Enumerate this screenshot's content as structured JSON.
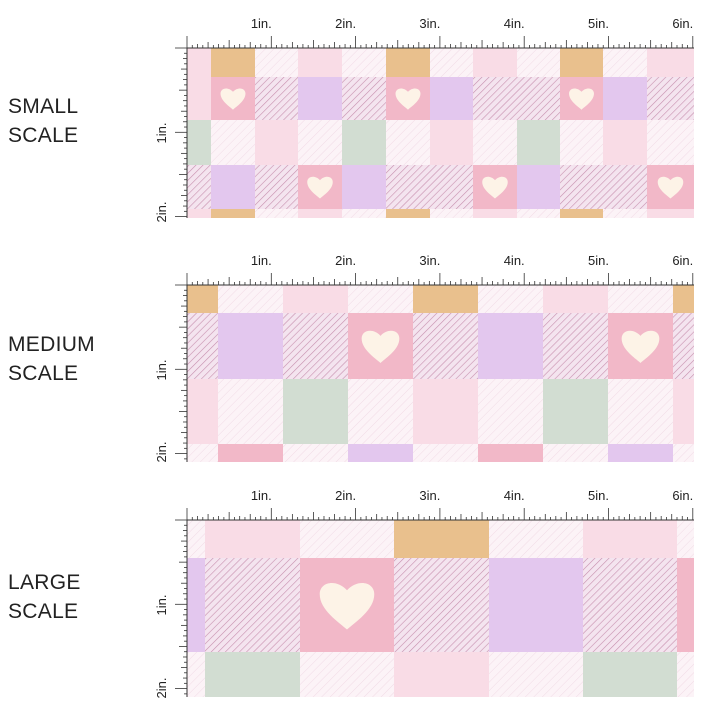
{
  "rulers": {
    "horizontal_labels": [
      "1in.",
      "2in.",
      "3in.",
      "4in.",
      "5in.",
      "6in."
    ],
    "vertical_labels": [
      "1in.",
      "2in."
    ]
  },
  "colors": {
    "tan": "#e9c08d",
    "lavender": "#e3c7ee",
    "sage": "#d2ddd2",
    "pink": "#f2b8c8",
    "light_pink": "#f9dce6",
    "pale": "#fcf3f7",
    "heart": "#fdf3e7",
    "stripe": "#c78fae"
  },
  "samples": [
    {
      "id": "small",
      "label_lines": [
        "SMALL",
        "SCALE"
      ],
      "grid": [
        [
          "lp",
          "tan",
          "pale",
          "lp",
          "pale",
          "tan",
          "pale",
          "lp",
          "pale",
          "tan",
          "pale",
          "lp"
        ],
        [
          "lp",
          "heart",
          "plaid",
          "lav",
          "plaid",
          "heart",
          "lav",
          "plaid",
          "plaid",
          "heart",
          "lav",
          "plaid"
        ],
        [
          "sage",
          "pale",
          "lp",
          "pale",
          "sage",
          "pale",
          "lp",
          "pale",
          "sage",
          "pale",
          "lp",
          "pale"
        ],
        [
          "plaid",
          "lav",
          "plaid",
          "heart",
          "lav",
          "plaid",
          "plaid",
          "heart",
          "lav",
          "plaid",
          "plaid",
          "heart"
        ],
        [
          "lp",
          "tan",
          "pale",
          "lp",
          "pale",
          "tan",
          "pale",
          "lp",
          "pale",
          "tan",
          "pale",
          "lp"
        ]
      ]
    },
    {
      "id": "medium",
      "label_lines": [
        "MEDIUM",
        "SCALE"
      ],
      "grid": [
        [
          "tan",
          "pale",
          "lp",
          "pale",
          "tan",
          "pale",
          "lp",
          "pale",
          "tan"
        ],
        [
          "plaid",
          "lav",
          "plaid",
          "heart",
          "plaid",
          "lav",
          "plaid",
          "heart",
          "plaid"
        ],
        [
          "lp",
          "pale",
          "sage",
          "pale",
          "lp",
          "pale",
          "sage",
          "pale",
          "lp"
        ],
        [
          "pale",
          "pink",
          "pale",
          "lav",
          "pale",
          "pink",
          "pale",
          "lav",
          "pale"
        ]
      ]
    },
    {
      "id": "large",
      "label_lines": [
        "LARGE",
        "SCALE"
      ],
      "grid": [
        [
          "pale",
          "lp",
          "pale",
          "tan",
          "pale",
          "lp",
          "pale"
        ],
        [
          "lav",
          "plaid",
          "heart",
          "plaid",
          "lav",
          "plaid",
          "pink"
        ],
        [
          "pale",
          "sage",
          "pale",
          "lp",
          "pale",
          "sage",
          "pale"
        ]
      ]
    }
  ]
}
